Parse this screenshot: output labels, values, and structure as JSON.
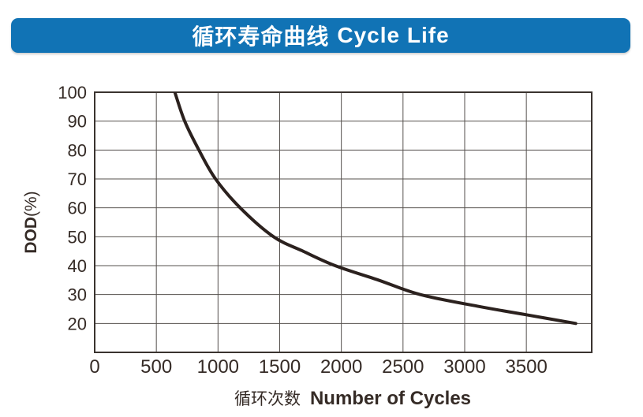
{
  "banner": {
    "title_cn": "循环寿命曲线",
    "title_en": "Cycle Life",
    "bg_color": "#1173b5",
    "text_color": "#ffffff"
  },
  "chart_data": {
    "type": "line",
    "title": "循环寿命曲线 Cycle Life",
    "ylabel": "DOD(%)",
    "ylabel_prefix": "DOD",
    "ylabel_suffix": "(%)",
    "xlabel_cn": "循环次数",
    "xlabel_en": "Number of Cycles",
    "xlim": [
      0,
      4030
    ],
    "ylim": [
      10,
      100
    ],
    "x_ticks": [
      0,
      500,
      1000,
      1500,
      2000,
      2500,
      3000,
      3500
    ],
    "y_ticks": [
      20,
      30,
      40,
      50,
      60,
      70,
      80,
      90,
      100
    ],
    "grid": true,
    "legend_position": "none",
    "colors": {
      "curve": "#2b211e",
      "gridline": "#55504d",
      "border": "#3a332f",
      "text": "#352b26"
    },
    "series": [
      {
        "name": "Cycle Life",
        "points": [
          [
            650,
            100
          ],
          [
            730,
            90
          ],
          [
            845,
            80
          ],
          [
            980,
            70
          ],
          [
            1180,
            60
          ],
          [
            1450,
            50
          ],
          [
            1690,
            45
          ],
          [
            1950,
            40
          ],
          [
            2300,
            35
          ],
          [
            2640,
            30
          ],
          [
            3100,
            26
          ],
          [
            3500,
            23
          ],
          [
            3900,
            20
          ]
        ]
      }
    ]
  }
}
